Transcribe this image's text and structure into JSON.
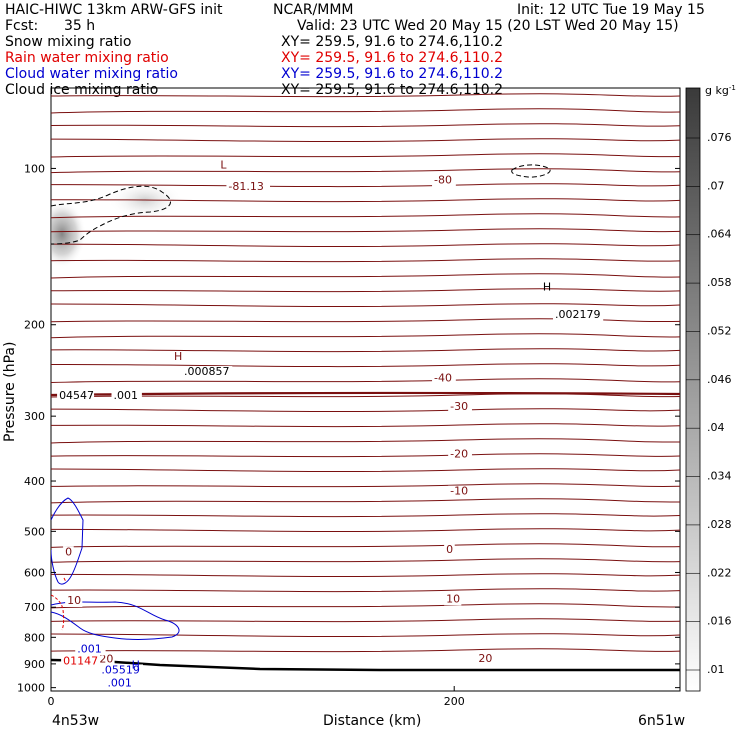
{
  "header": {
    "model": "HAIC-HIWC 13km ARW-GFS init",
    "org": "NCAR/MMM",
    "init": "Init: 12 UTC Tue 19 May 15",
    "fcst_label": "Fcst:",
    "fcst_value": "35 h",
    "valid": "Valid: 23 UTC Wed 20 May 15 (20 LST Wed 20 May 15)"
  },
  "fields": [
    {
      "name": "Snow mixing ratio",
      "xy": "XY= 259.5, 91.6 to 274.6,110.2",
      "color": "#000000"
    },
    {
      "name": "Rain water mixing ratio",
      "xy": "XY= 259.5, 91.6 to 274.6,110.2",
      "color": "#e00000"
    },
    {
      "name": "Cloud water mixing ratio",
      "xy": "XY= 259.5, 91.6 to 274.6,110.2",
      "color": "#0000d0"
    },
    {
      "name": "Cloud ice mixing ratio",
      "xy": "XY= 259.5, 91.6 to 274.6,110.2",
      "color": "#000000"
    }
  ],
  "chart_data": {
    "type": "contour",
    "xlabel": "Distance (km)",
    "ylabel": "Pressure (hPa)",
    "x_ticks": [
      0,
      200
    ],
    "y_ticks": [
      100,
      200,
      300,
      400,
      500,
      600,
      700,
      800,
      900,
      1000
    ],
    "y_scale": "log",
    "ylim": [
      1015,
      70
    ],
    "xlim": [
      0,
      312
    ],
    "start_label": "4n53w",
    "end_label": "6n51w",
    "temperature_contours": {
      "color": "#7a1010",
      "labels": [
        {
          "text": "-80",
          "x": 190,
          "p": 107
        },
        {
          "text": "-81.13",
          "x": 88,
          "p": 110
        },
        {
          "text": "-40",
          "x": 190,
          "p": 257
        },
        {
          "text": "-30",
          "x": 198,
          "p": 292
        },
        {
          "text": "-20",
          "x": 198,
          "p": 360
        },
        {
          "text": "-10",
          "x": 198,
          "p": 425
        },
        {
          "text": "0",
          "x": 7,
          "p": 556
        },
        {
          "text": "0",
          "x": 196,
          "p": 550
        },
        {
          "text": "10",
          "x": 8,
          "p": 690
        },
        {
          "text": "10",
          "x": 196,
          "p": 685
        },
        {
          "text": "20",
          "x": 212,
          "p": 893
        },
        {
          "text": "20",
          "x": 24,
          "p": 895
        }
      ],
      "extrema": [
        {
          "marker": "L",
          "x": 84,
          "p": 100
        },
        {
          "marker": "H",
          "x": 61,
          "p": 234
        }
      ]
    },
    "snow_contours": {
      "color": "#000000",
      "labels": [
        {
          "text": ".002179",
          "x": 250,
          "p": 194
        },
        {
          "text": ".000857",
          "x": 66,
          "p": 250
        },
        {
          "text": "04547",
          "x": 4,
          "p": 278
        },
        {
          "text": ".001",
          "x": 31,
          "p": 278
        }
      ],
      "extrema": [
        {
          "marker": "H",
          "x": 244,
          "p": 172
        }
      ]
    },
    "rain_contours": {
      "color": "#e00000",
      "labels": [
        {
          "text": "01147",
          "x": 6,
          "p": 902
        }
      ]
    },
    "cloud_water_contours": {
      "color": "#0000d0",
      "labels": [
        {
          "text": ".001",
          "x": 13,
          "p": 855
        },
        {
          "text": ".05519",
          "x": 25,
          "p": 939
        },
        {
          "text": ".001",
          "x": 28,
          "p": 995
        }
      ],
      "extrema": [
        {
          "marker": "H",
          "x": 40,
          "p": 919
        }
      ]
    },
    "colorbar": {
      "unit": "g kg",
      "unit_exp": "-1",
      "ticks": [
        ".076",
        ".07",
        ".064",
        ".058",
        ".052",
        ".046",
        ".04",
        ".034",
        ".028",
        ".022",
        ".016",
        ".01"
      ]
    }
  }
}
